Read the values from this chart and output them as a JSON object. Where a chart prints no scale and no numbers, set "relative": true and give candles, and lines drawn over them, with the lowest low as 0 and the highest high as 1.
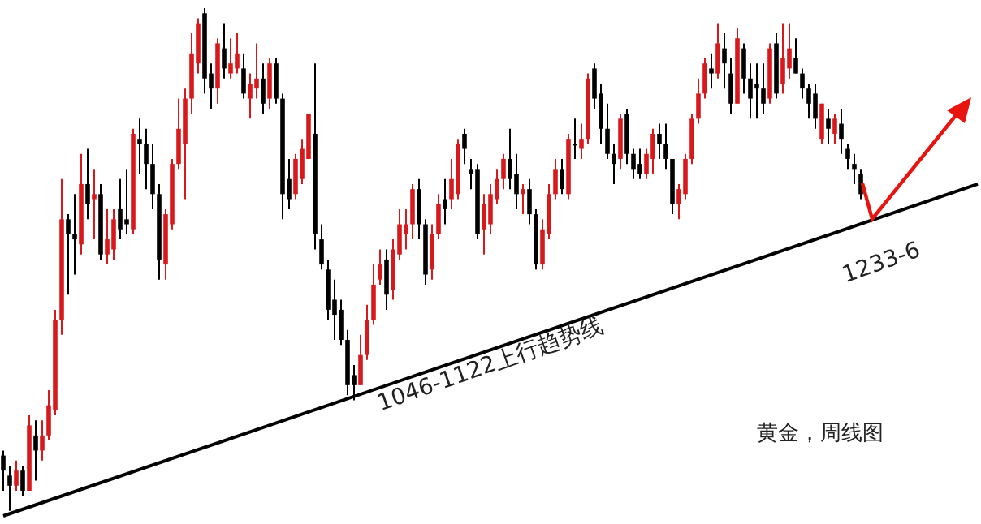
{
  "chart_data": {
    "type": "candlestick",
    "relative": true,
    "title": "黄金，周线图",
    "annotations": [
      "1046-1122上行趋势线",
      "1233-6"
    ],
    "colors": [
      "#000000",
      "#000000",
      "#d7191c",
      "#000000",
      "#d7191c",
      "#000000",
      "#d7191c",
      "#d7191c",
      "#d7191c",
      "#d7191c",
      "#000000",
      "#000000",
      "#d7191c",
      "#000000",
      "#d7191c",
      "#000000",
      "#d7191c",
      "#d7191c",
      "#000000",
      "#000000",
      "#d7191c",
      "#000000",
      "#000000",
      "#000000",
      "#000000",
      "#d7191c",
      "#d7191c",
      "#d7191c",
      "#d7191c",
      "#d7191c",
      "#d7191c",
      "#000000",
      "#000000",
      "#d7191c",
      "#000000",
      "#d7191c",
      "#d7191c",
      "#000000",
      "#d7191c",
      "#d7191c",
      "#000000",
      "#d7191c",
      "#000000",
      "#000000",
      "#000000",
      "#d7191c",
      "#d7191c",
      "#d7191c",
      "#000000",
      "#000000",
      "#000000",
      "#000000",
      "#000000",
      "#000000",
      "#000000",
      "#d7191c",
      "#d7191c",
      "#d7191c",
      "#d7191c",
      "#000000",
      "#d7191c",
      "#d7191c",
      "#d7191c",
      "#d7191c",
      "#000000",
      "#000000",
      "#d7191c",
      "#d7191c",
      "#000000",
      "#d7191c",
      "#d7191c",
      "#000000",
      "#000000",
      "#000000",
      "#d7191c",
      "#d7191c",
      "#d7191c",
      "#d7191c",
      "#000000",
      "#000000",
      "#d7191c",
      "#000000",
      "#000000",
      "#d7191c",
      "#d7191c",
      "#d7191c",
      "#000000",
      "#d7191c",
      "#000000",
      "#d7191c",
      "#d7191c",
      "#000000",
      "#000000",
      "#000000",
      "#000000",
      "#d7191c",
      "#000000",
      "#000000",
      "#000000",
      "#d7191c",
      "#d7191c",
      "#000000",
      "#000000",
      "#000000",
      "#d7191c",
      "#d7191c",
      "#d7191c",
      "#d7191c",
      "#d7191c",
      "#000000",
      "#d7191c",
      "#000000",
      "#000000",
      "#d7191c",
      "#000000",
      "#000000",
      "#000000",
      "#000000",
      "#d7191c",
      "#000000",
      "#d7191c",
      "#d7191c",
      "#000000",
      "#000000",
      "#000000",
      "#000000",
      "#d7191c",
      "#000000",
      "#d7191c",
      "#000000",
      "#000000",
      "#000000",
      "#000000",
      null,
      null,
      null,
      null,
      null,
      null,
      null,
      null,
      null,
      null,
      null,
      null,
      null,
      null,
      null,
      null,
      null,
      null
    ],
    "categories": [
      null,
      null,
      null,
      null,
      null,
      null,
      null,
      null,
      null,
      null,
      null,
      null,
      null,
      null,
      null,
      null,
      null,
      null,
      null,
      null,
      null,
      null,
      null,
      null,
      null,
      null,
      null,
      null,
      null,
      null,
      null,
      null,
      null,
      null,
      null,
      null,
      null,
      null,
      null,
      null,
      null,
      null,
      null,
      null,
      null,
      null,
      null,
      null,
      null,
      null,
      null,
      null,
      null,
      null,
      null,
      null,
      null,
      null,
      null,
      null,
      null,
      null,
      null,
      null,
      null,
      null,
      null,
      null,
      null,
      null,
      null,
      null,
      null,
      null,
      null,
      null,
      null,
      null,
      null,
      null,
      null,
      null,
      null,
      null,
      null,
      null,
      null,
      null,
      null,
      null,
      null,
      null,
      null,
      null,
      null,
      null,
      null,
      null,
      null,
      null,
      null,
      null,
      null,
      null,
      null,
      null,
      null,
      null,
      null,
      null,
      null,
      null,
      null,
      null,
      null,
      null,
      null,
      null,
      null,
      null,
      null,
      null,
      null,
      null,
      null,
      null,
      null,
      null,
      null,
      null,
      null,
      null,
      null,
      null,
      null,
      null,
      null,
      null,
      null,
      null,
      null,
      null,
      null,
      null,
      null,
      null,
      null,
      null,
      null,
      null,
      null
    ],
    "ohlc": [
      [
        0.11,
        0.12,
        0.04,
        0.08
      ],
      [
        0.07,
        0.09,
        0,
        0.05
      ],
      [
        0.05,
        0.1,
        0.04,
        0.08
      ],
      [
        0.08,
        0.09,
        0.03,
        0.04
      ],
      [
        0.04,
        0.19,
        0.04,
        0.17
      ],
      [
        0.15,
        0.18,
        0.06,
        0.12
      ],
      [
        0.12,
        0.18,
        0.1,
        0.15
      ],
      [
        0.15,
        0.24,
        0.14,
        0.21
      ],
      [
        0.2,
        0.4,
        0.19,
        0.38
      ],
      [
        0.38,
        0.66,
        0.35,
        0.58
      ],
      [
        0.58,
        0.59,
        0.43,
        0.55
      ],
      [
        0.55,
        0.63,
        0.47,
        0.54
      ],
      [
        0.53,
        0.71,
        0.51,
        0.65
      ],
      [
        0.65,
        0.72,
        0.58,
        0.61
      ],
      [
        0.62,
        0.68,
        0.54,
        0.63
      ],
      [
        0.63,
        0.65,
        0.5,
        0.51
      ],
      [
        0.51,
        0.6,
        0.49,
        0.54
      ],
      [
        0.52,
        0.6,
        0.5,
        0.58
      ],
      [
        0.6,
        0.66,
        0.54,
        0.56
      ],
      [
        0.58,
        0.68,
        0.55,
        0.57
      ],
      [
        0.56,
        0.76,
        0.55,
        0.75
      ],
      [
        0.74,
        0.78,
        0.67,
        0.73
      ],
      [
        0.73,
        0.76,
        0.64,
        0.69
      ],
      [
        0.69,
        0.73,
        0.6,
        0.63
      ],
      [
        0.63,
        0.65,
        0.46,
        0.5
      ],
      [
        0.49,
        0.6,
        0.46,
        0.59
      ],
      [
        0.57,
        0.7,
        0.56,
        0.69
      ],
      [
        0.69,
        0.82,
        0.68,
        0.76
      ],
      [
        0.73,
        0.84,
        0.62,
        0.82
      ],
      [
        0.82,
        0.95,
        0.79,
        0.91
      ],
      [
        0.89,
        0.98,
        0.87,
        0.97
      ],
      [
        0.99,
        1,
        0.83,
        0.86
      ],
      [
        0.87,
        0.89,
        0.8,
        0.84
      ],
      [
        0.84,
        0.94,
        0.81,
        0.93
      ],
      [
        0.92,
        0.97,
        0.86,
        0.88
      ],
      [
        0.87,
        0.94,
        0.86,
        0.89
      ],
      [
        0.88,
        0.95,
        0.87,
        0.91
      ],
      [
        0.88,
        0.91,
        0.82,
        0.83
      ],
      [
        0.82,
        0.87,
        0.78,
        0.85
      ],
      [
        0.84,
        0.93,
        0.82,
        0.86
      ],
      [
        0.86,
        0.89,
        0.79,
        0.81
      ],
      [
        0.82,
        0.9,
        0.8,
        0.89
      ],
      [
        0.89,
        0.9,
        0.81,
        0.82
      ],
      [
        0.82,
        0.83,
        0.58,
        0.63
      ],
      [
        0.66,
        0.7,
        0.6,
        0.62
      ],
      [
        0.63,
        0.71,
        0.62,
        0.7
      ],
      [
        0.66,
        0.74,
        0.65,
        0.72
      ],
      [
        0.7,
        0.79,
        0.7,
        0.79
      ],
      [
        0.75,
        0.89,
        0.52,
        0.55
      ],
      [
        0.54,
        0.57,
        0.48,
        0.49
      ],
      [
        0.48,
        0.5,
        0.38,
        0.4
      ],
      [
        0.42,
        0.46,
        0.34,
        0.39
      ],
      [
        0.4,
        0.42,
        0.33,
        0.34
      ],
      [
        0.34,
        0.36,
        0.23,
        0.25
      ],
      [
        0.27,
        0.29,
        0.22,
        0.25
      ],
      [
        0.25,
        0.35,
        0.25,
        0.31
      ],
      [
        0.31,
        0.41,
        0.3,
        0.38
      ],
      [
        0.38,
        0.49,
        0.37,
        0.45
      ],
      [
        0.46,
        0.52,
        0.45,
        0.49
      ],
      [
        0.5,
        0.52,
        0.4,
        0.43
      ],
      [
        0.44,
        0.54,
        0.42,
        0.52
      ],
      [
        0.51,
        0.6,
        0.5,
        0.57
      ],
      [
        0.55,
        0.6,
        0.52,
        0.57
      ],
      [
        0.57,
        0.65,
        0.54,
        0.64
      ],
      [
        0.64,
        0.66,
        0.54,
        0.57
      ],
      [
        0.57,
        0.58,
        0.45,
        0.47
      ],
      [
        0.48,
        0.57,
        0.46,
        0.55
      ],
      [
        0.55,
        0.63,
        0.54,
        0.61
      ],
      [
        0.62,
        0.66,
        0.57,
        0.6
      ],
      [
        0.62,
        0.7,
        0.6,
        0.66
      ],
      [
        0.63,
        0.74,
        0.62,
        0.73
      ],
      [
        0.75,
        0.76,
        0.69,
        0.72
      ],
      [
        0.68,
        0.7,
        0.64,
        0.67
      ],
      [
        0.68,
        0.69,
        0.54,
        0.55
      ],
      [
        0.56,
        0.63,
        0.51,
        0.61
      ],
      [
        0.57,
        0.65,
        0.55,
        0.63
      ],
      [
        0.62,
        0.68,
        0.61,
        0.66
      ],
      [
        0.66,
        0.71,
        0.64,
        0.7
      ],
      [
        0.7,
        0.76,
        0.64,
        0.66
      ],
      [
        0.67,
        0.71,
        0.6,
        0.63
      ],
      [
        0.63,
        0.65,
        0.59,
        0.64
      ],
      [
        0.64,
        0.66,
        0.57,
        0.59
      ],
      [
        0.59,
        0.6,
        0.48,
        0.49
      ],
      [
        0.49,
        0.58,
        0.48,
        0.56
      ],
      [
        0.55,
        0.65,
        0.54,
        0.63
      ],
      [
        0.63,
        0.7,
        0.62,
        0.68
      ],
      [
        0.68,
        0.7,
        0.63,
        0.64
      ],
      [
        0.63,
        0.75,
        0.62,
        0.74
      ],
      [
        0.73,
        0.78,
        0.7,
        0.73
      ],
      [
        0.72,
        0.77,
        0.7,
        0.74
      ],
      [
        0.74,
        0.87,
        0.73,
        0.86
      ],
      [
        0.88,
        0.89,
        0.8,
        0.82
      ],
      [
        0.83,
        0.85,
        0.73,
        0.76
      ],
      [
        0.76,
        0.81,
        0.7,
        0.71
      ],
      [
        0.71,
        0.73,
        0.65,
        0.69
      ],
      [
        0.7,
        0.79,
        0.68,
        0.78
      ],
      [
        0.79,
        0.8,
        0.69,
        0.71
      ],
      [
        0.71,
        0.72,
        0.66,
        0.68
      ],
      [
        0.69,
        0.72,
        0.66,
        0.67
      ],
      [
        0.67,
        0.72,
        0.66,
        0.71
      ],
      [
        0.7,
        0.76,
        0.67,
        0.75
      ],
      [
        0.75,
        0.77,
        0.7,
        0.73
      ],
      [
        0.73,
        0.77,
        0.68,
        0.7
      ],
      [
        0.7,
        0.7,
        0.59,
        0.61
      ],
      [
        0.61,
        0.65,
        0.58,
        0.64
      ],
      [
        0.63,
        0.71,
        0.62,
        0.7
      ],
      [
        0.7,
        0.79,
        0.69,
        0.78
      ],
      [
        0.78,
        0.86,
        0.77,
        0.83
      ],
      [
        0.83,
        0.9,
        0.82,
        0.89
      ],
      [
        0.88,
        0.91,
        0.84,
        0.87
      ],
      [
        0.87,
        0.97,
        0.86,
        0.93
      ],
      [
        0.92,
        0.95,
        0.84,
        0.89
      ],
      [
        0.87,
        0.9,
        0.79,
        0.81
      ],
      [
        0.81,
        0.96,
        0.81,
        0.94
      ],
      [
        0.92,
        0.93,
        0.83,
        0.86
      ],
      [
        0.86,
        0.89,
        0.78,
        0.82
      ],
      [
        0.85,
        0.89,
        0.78,
        0.84
      ],
      [
        0.84,
        0.89,
        0.79,
        0.81
      ],
      [
        0.82,
        0.93,
        0.81,
        0.92
      ],
      [
        0.93,
        0.95,
        0.82,
        0.83
      ],
      [
        0.85,
        0.97,
        0.83,
        0.9
      ],
      [
        0.88,
        0.97,
        0.86,
        0.92
      ],
      [
        0.9,
        0.94,
        0.87,
        0.87
      ],
      [
        0.87,
        0.88,
        0.82,
        0.84
      ],
      [
        0.84,
        0.85,
        0.78,
        0.81
      ],
      [
        0.83,
        0.85,
        0.76,
        0.78
      ],
      [
        0.74,
        0.81,
        0.73,
        0.81
      ],
      [
        0.78,
        0.8,
        0.73,
        0.76
      ],
      [
        0.75,
        0.79,
        0.73,
        0.78
      ],
      [
        0.77,
        0.8,
        0.71,
        0.74
      ],
      [
        0.72,
        0.73,
        0.68,
        0.7
      ],
      [
        0.69,
        0.71,
        0.65,
        0.68
      ],
      [
        0.67,
        0.68,
        0.62,
        0.63
      ],
      null,
      null,
      null,
      null,
      null,
      null,
      null,
      null,
      null,
      null,
      null,
      null,
      null,
      null,
      null,
      null,
      null,
      null
    ],
    "series": [
      {
        "type": "line",
        "color": "#000000",
        "values": [
          -0.01,
          null,
          null,
          null,
          null,
          null,
          null,
          null,
          null,
          null,
          null,
          null,
          null,
          null,
          null,
          null,
          null,
          null,
          null,
          null,
          null,
          null,
          null,
          null,
          null,
          null,
          null,
          null,
          null,
          null,
          null,
          null,
          null,
          null,
          null,
          null,
          null,
          null,
          null,
          null,
          null,
          null,
          null,
          null,
          null,
          null,
          null,
          null,
          null,
          null,
          null,
          null,
          null,
          null,
          null,
          null,
          null,
          null,
          null,
          null,
          null,
          null,
          null,
          null,
          null,
          null,
          null,
          null,
          null,
          null,
          null,
          null,
          null,
          null,
          null,
          null,
          null,
          null,
          null,
          null,
          null,
          null,
          null,
          null,
          null,
          null,
          null,
          null,
          null,
          null,
          null,
          null,
          null,
          null,
          null,
          null,
          null,
          null,
          null,
          null,
          null,
          null,
          null,
          null,
          null,
          null,
          null,
          null,
          null,
          null,
          null,
          null,
          null,
          null,
          null,
          null,
          null,
          null,
          null,
          null,
          null,
          null,
          null,
          null,
          null,
          null,
          null,
          null,
          null,
          null,
          null,
          null,
          null,
          null,
          null,
          null,
          null,
          null,
          null,
          null,
          null,
          null,
          null,
          null,
          null,
          null,
          null,
          null,
          null,
          null,
          0.65
        ]
      }
    ]
  }
}
